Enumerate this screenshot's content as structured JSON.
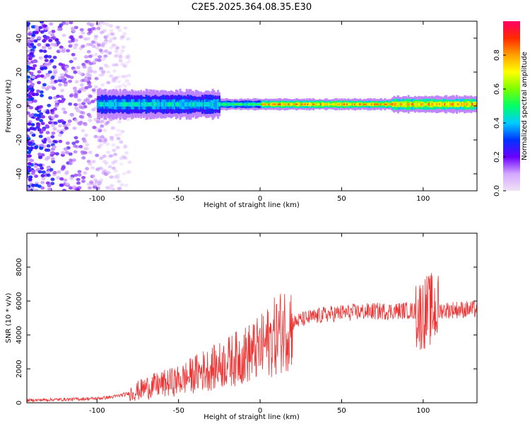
{
  "title": "C2E5.2025.364.08.35.E30",
  "colorbar": {
    "label": "Normalized spectral amplitude",
    "ticks": [
      "0.0",
      "0.2",
      "0.4",
      "0.6",
      "0.8"
    ],
    "tick_values": [
      0.0,
      0.2,
      0.4,
      0.6,
      0.8
    ],
    "range": [
      0,
      1
    ],
    "colormap": [
      "#f0e2f5",
      "#d4a8ff",
      "#6a00ff",
      "#0033ff",
      "#00ccff",
      "#00ff66",
      "#7cff00",
      "#ffff00",
      "#ffa000",
      "#ff2a00",
      "#ff0066"
    ]
  },
  "chart_data": [
    {
      "type": "heatmap",
      "xlabel": "Height of straight line (km)",
      "ylabel": "Frequency (Hz)",
      "xlim": [
        -143,
        133
      ],
      "ylim": [
        -50,
        50
      ],
      "xticks": [
        -100,
        -50,
        0,
        50,
        100
      ],
      "xtick_labels": [
        "-100",
        "-50",
        "0",
        "50",
        "100"
      ],
      "yticks": [
        -40,
        -20,
        0,
        20,
        40
      ],
      "ytick_labels": [
        "-40",
        "-20",
        "0",
        "20",
        "40"
      ],
      "ridge": {
        "x_start": -100,
        "x_end": 133,
        "center_frequency": 1,
        "band_segments": [
          {
            "x": [
              -100,
              -25
            ],
            "half_width": 5,
            "peak_amplitude": 0.5
          },
          {
            "x": [
              -25,
              0
            ],
            "half_width": 2,
            "peak_amplitude": 0.6
          },
          {
            "x": [
              0,
              80
            ],
            "half_width": 2,
            "peak_amplitude": 0.9
          },
          {
            "x": [
              80,
              133
            ],
            "half_width": 3,
            "peak_amplitude": 0.9
          }
        ]
      },
      "noise_region": {
        "x": [
          -143,
          -80
        ],
        "frequency": [
          -50,
          50
        ],
        "amplitude": 0.2
      }
    },
    {
      "type": "line",
      "xlabel": "Height of straight line (km)",
      "ylabel": "SNR (10 * v/v)",
      "xlim": [
        -143,
        133
      ],
      "ylim": [
        0,
        10000
      ],
      "xticks": [
        -100,
        -50,
        0,
        50,
        100
      ],
      "xtick_labels": [
        "-100",
        "-50",
        "0",
        "50",
        "100"
      ],
      "yticks": [
        0,
        2000,
        4000,
        6000,
        8000
      ],
      "ytick_labels": [
        "0",
        "2000",
        "4000",
        "6000",
        "8000"
      ],
      "line_color": "#ee3333",
      "series": [
        {
          "x": [
            -143,
            -120,
            -100,
            -90,
            -80,
            -75,
            -70,
            -60,
            -50,
            -45,
            -40,
            -35,
            -30,
            -25,
            -20,
            -15,
            -10,
            -5,
            0,
            5,
            10,
            15,
            20,
            25,
            30,
            40,
            50,
            60,
            70,
            80,
            90,
            95,
            98,
            100,
            102,
            105,
            110,
            120,
            133
          ],
          "y": [
            150,
            200,
            250,
            350,
            550,
            700,
            900,
            1100,
            1300,
            1500,
            1700,
            1900,
            2000,
            2200,
            2400,
            2600,
            2800,
            3000,
            3200,
            3600,
            4000,
            4400,
            4700,
            4900,
            5000,
            5200,
            5300,
            5350,
            5400,
            5400,
            5450,
            5400,
            5200,
            5300,
            5400,
            5500,
            5450,
            5500,
            5500
          ]
        }
      ]
    }
  ]
}
